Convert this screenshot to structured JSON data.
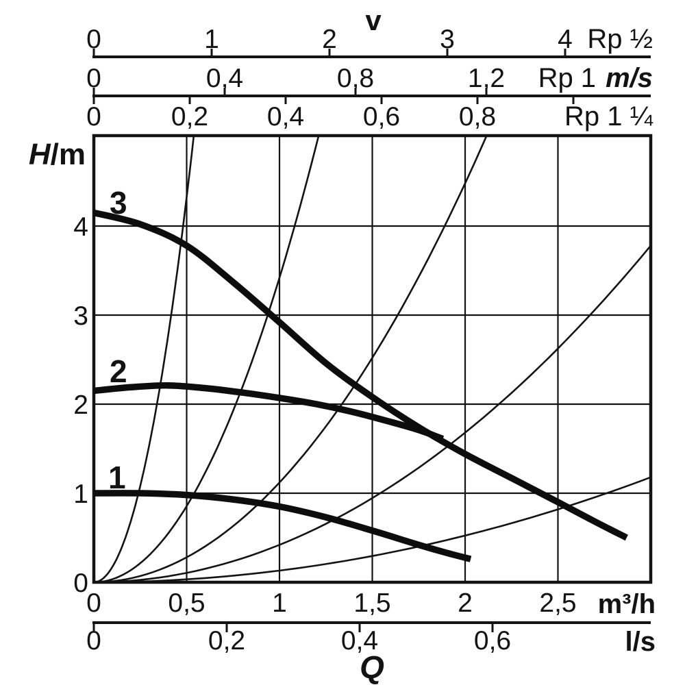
{
  "labels": {
    "v_title": "v",
    "rp_half": "Rp ½",
    "rp_one": "Rp 1",
    "ms_unit": "m/s",
    "rp_one_quarter": "Rp 1 ¼",
    "head_symbol": "H",
    "head_unit": "/m",
    "m3h_unit": "m³/h",
    "ls_unit": "l/s",
    "q_title": "Q"
  },
  "chart_data": {
    "type": "line",
    "title": "Circulator pump duty chart: head H (m) versus flow Q for speed settings 1, 2, 3, with pipe-velocity reference scales",
    "xlabel": "Q",
    "ylabel": "H/m",
    "grid": true,
    "xlim_m3h": [
      0,
      3
    ],
    "ylim_m": [
      0,
      5
    ],
    "y_axis": {
      "label": "H/m",
      "ticks": [
        {
          "h": 0,
          "label": "0"
        },
        {
          "h": 1,
          "label": "1"
        },
        {
          "h": 2,
          "label": "2"
        },
        {
          "h": 3,
          "label": "3"
        },
        {
          "h": 4,
          "label": "4"
        }
      ]
    },
    "x_axis_m3h": {
      "unit": "m³/h",
      "ticks": [
        {
          "q": 0,
          "label": "0"
        },
        {
          "q": 0.5,
          "label": "0,5"
        },
        {
          "q": 1,
          "label": "1"
        },
        {
          "q": 1.5,
          "label": "1,5"
        },
        {
          "q": 2,
          "label": "2"
        },
        {
          "q": 2.5,
          "label": "2,5"
        }
      ]
    },
    "x_axis_ls": {
      "unit": "l/s",
      "ticks": [
        {
          "v": 0,
          "label": "0"
        },
        {
          "v": 0.2,
          "label": "0,2"
        },
        {
          "v": 0.4,
          "label": "0,4"
        },
        {
          "v": 0.6,
          "label": "0,6"
        }
      ]
    },
    "top_axes": [
      {
        "pipe": "Rp ½",
        "unit": "",
        "ticks": [
          {
            "v": 0,
            "label": "0"
          },
          {
            "v": 1,
            "label": "1"
          },
          {
            "v": 2,
            "label": "2"
          },
          {
            "v": 3,
            "label": "3"
          },
          {
            "v": 4,
            "label": "4"
          }
        ]
      },
      {
        "pipe": "Rp 1",
        "unit": "m/s",
        "ticks": [
          {
            "v": 0,
            "label": "0"
          },
          {
            "v": 0.4,
            "label": "0,4"
          },
          {
            "v": 0.8,
            "label": "0,8"
          },
          {
            "v": 1.2,
            "label": "1,2"
          }
        ]
      },
      {
        "pipe": "Rp 1 ¼",
        "unit": "",
        "ticks": [
          {
            "v": 0,
            "label": "0"
          },
          {
            "v": 0.2,
            "label": "0,2"
          },
          {
            "v": 0.4,
            "label": "0,4"
          },
          {
            "v": 0.6,
            "label": "0,6"
          },
          {
            "v": 0.8,
            "label": "0,8"
          },
          {
            "v": 1.0,
            "label": ""
          }
        ]
      }
    ],
    "pump_curves": [
      {
        "name": "1",
        "points_q_h": [
          [
            0,
            1.0
          ],
          [
            0.25,
            1.0
          ],
          [
            0.5,
            0.98
          ],
          [
            0.75,
            0.93
          ],
          [
            1.0,
            0.85
          ],
          [
            1.25,
            0.73
          ],
          [
            1.5,
            0.58
          ],
          [
            1.75,
            0.42
          ],
          [
            1.9,
            0.33
          ],
          [
            2.03,
            0.26
          ]
        ]
      },
      {
        "name": "2",
        "points_q_h": [
          [
            0,
            2.15
          ],
          [
            0.2,
            2.19
          ],
          [
            0.4,
            2.21
          ],
          [
            0.6,
            2.18
          ],
          [
            0.8,
            2.13
          ],
          [
            1.0,
            2.07
          ],
          [
            1.2,
            2.0
          ],
          [
            1.4,
            1.91
          ],
          [
            1.6,
            1.8
          ],
          [
            1.75,
            1.71
          ],
          [
            1.88,
            1.61
          ]
        ]
      },
      {
        "name": "3",
        "points_q_h": [
          [
            0,
            4.15
          ],
          [
            0.25,
            4.02
          ],
          [
            0.5,
            3.78
          ],
          [
            0.75,
            3.37
          ],
          [
            1.0,
            2.92
          ],
          [
            1.25,
            2.46
          ],
          [
            1.5,
            2.08
          ],
          [
            1.75,
            1.74
          ],
          [
            2.0,
            1.44
          ],
          [
            2.25,
            1.17
          ],
          [
            2.5,
            0.9
          ],
          [
            2.7,
            0.68
          ],
          [
            2.87,
            0.5
          ]
        ]
      }
    ],
    "velocity_reference_curves": {
      "model": "H = k · Q²  (Q in m³/h, H in m)",
      "series": [
        {
          "k": 17.3
        },
        {
          "k": 3.42
        },
        {
          "k": 1.12
        },
        {
          "k": 0.42
        },
        {
          "k": 0.131
        }
      ]
    }
  }
}
